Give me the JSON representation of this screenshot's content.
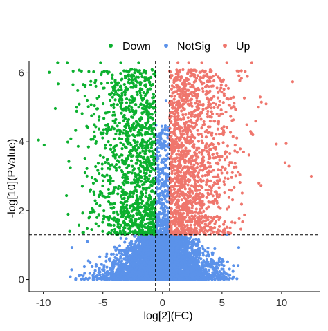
{
  "colors": {
    "down": "#0cb02f",
    "notsig": "#5b92ea",
    "up": "#ef766d",
    "axis": "#000000",
    "text": "#333333"
  },
  "chart_data": {
    "type": "scatter",
    "title": "",
    "xlabel": "log[2](FC)",
    "ylabel": "-log[10](PValue)",
    "xlim": [
      -11.2,
      13.2
    ],
    "ylim": [
      -0.35,
      6.35
    ],
    "x_ticks": [
      -10,
      -5,
      0,
      5,
      10
    ],
    "y_ticks": [
      0,
      2,
      4,
      6
    ],
    "grid": false,
    "legend_position": "top",
    "legend": [
      "Down",
      "NotSig",
      "Up"
    ],
    "threshold_lines": {
      "x": [
        -0.585,
        0.585
      ],
      "y": [
        1.301
      ]
    },
    "series": [
      {
        "name": "Down",
        "color_key": "down",
        "approx_count": 1200,
        "x_range": [
          -10.4,
          -0.6
        ],
        "y_range": [
          1.3,
          6.3
        ],
        "points": [
          [
            -10.4,
            4.05
          ],
          [
            -8.8,
            6.3
          ],
          [
            -8.0,
            6.3
          ],
          [
            -7.5,
            6.05
          ],
          [
            -6.8,
            6.05
          ],
          [
            -7.2,
            5.0
          ],
          [
            -6.5,
            5.6
          ],
          [
            -6.5,
            3.1
          ],
          [
            -5.8,
            2.8
          ],
          [
            -5.5,
            1.8
          ],
          [
            -5.2,
            6.3
          ],
          [
            -4.8,
            3.4
          ],
          [
            -4.5,
            2.4
          ],
          [
            -3.5,
            6.3
          ],
          [
            -2.8,
            6.05
          ],
          [
            -2.0,
            6.3
          ],
          [
            -1.4,
            6.05
          ],
          [
            -1.2,
            5.5
          ],
          [
            -3.7,
            5.5
          ],
          [
            -7.8,
            1.4
          ]
        ]
      },
      {
        "name": "NotSig",
        "color_key": "notsig",
        "approx_count": 4000,
        "x_range": [
          -8.0,
          6.4
        ],
        "y_range": [
          0.0,
          5.2
        ],
        "points": [
          [
            -7.6,
            0.93
          ],
          [
            -6.3,
            1.1
          ],
          [
            -4.9,
            0.41
          ],
          [
            -3.5,
            1.2
          ],
          [
            -0.6,
            0.2
          ],
          [
            -0.2,
            3.9
          ],
          [
            -0.3,
            2.3
          ],
          [
            0.1,
            0.0
          ],
          [
            0.3,
            5.2
          ],
          [
            1.5,
            0.4
          ],
          [
            2.7,
            1.3
          ],
          [
            4.3,
            0.5
          ],
          [
            5.1,
            0.3
          ],
          [
            5.4,
            1.3
          ],
          [
            6.4,
            0.93
          ]
        ]
      },
      {
        "name": "Up",
        "color_key": "up",
        "approx_count": 1400,
        "x_range": [
          0.6,
          12.5
        ],
        "y_range": [
          1.3,
          6.3
        ],
        "points": [
          [
            0.6,
            6.05
          ],
          [
            1.3,
            6.3
          ],
          [
            2.2,
            6.3
          ],
          [
            3.3,
            6.3
          ],
          [
            4.1,
            6.05
          ],
          [
            5.4,
            6.3
          ],
          [
            6.4,
            6.05
          ],
          [
            7.5,
            6.3
          ],
          [
            8.2,
            5.3
          ],
          [
            8.7,
            5.1
          ],
          [
            7.4,
            4.3
          ],
          [
            6.1,
            3.9
          ],
          [
            8.1,
            2.8
          ],
          [
            12.5,
            3.0
          ],
          [
            4.3,
            4.1
          ],
          [
            5.6,
            2.6
          ],
          [
            3.1,
            1.6
          ],
          [
            1.8,
            1.35
          ]
        ]
      }
    ]
  }
}
